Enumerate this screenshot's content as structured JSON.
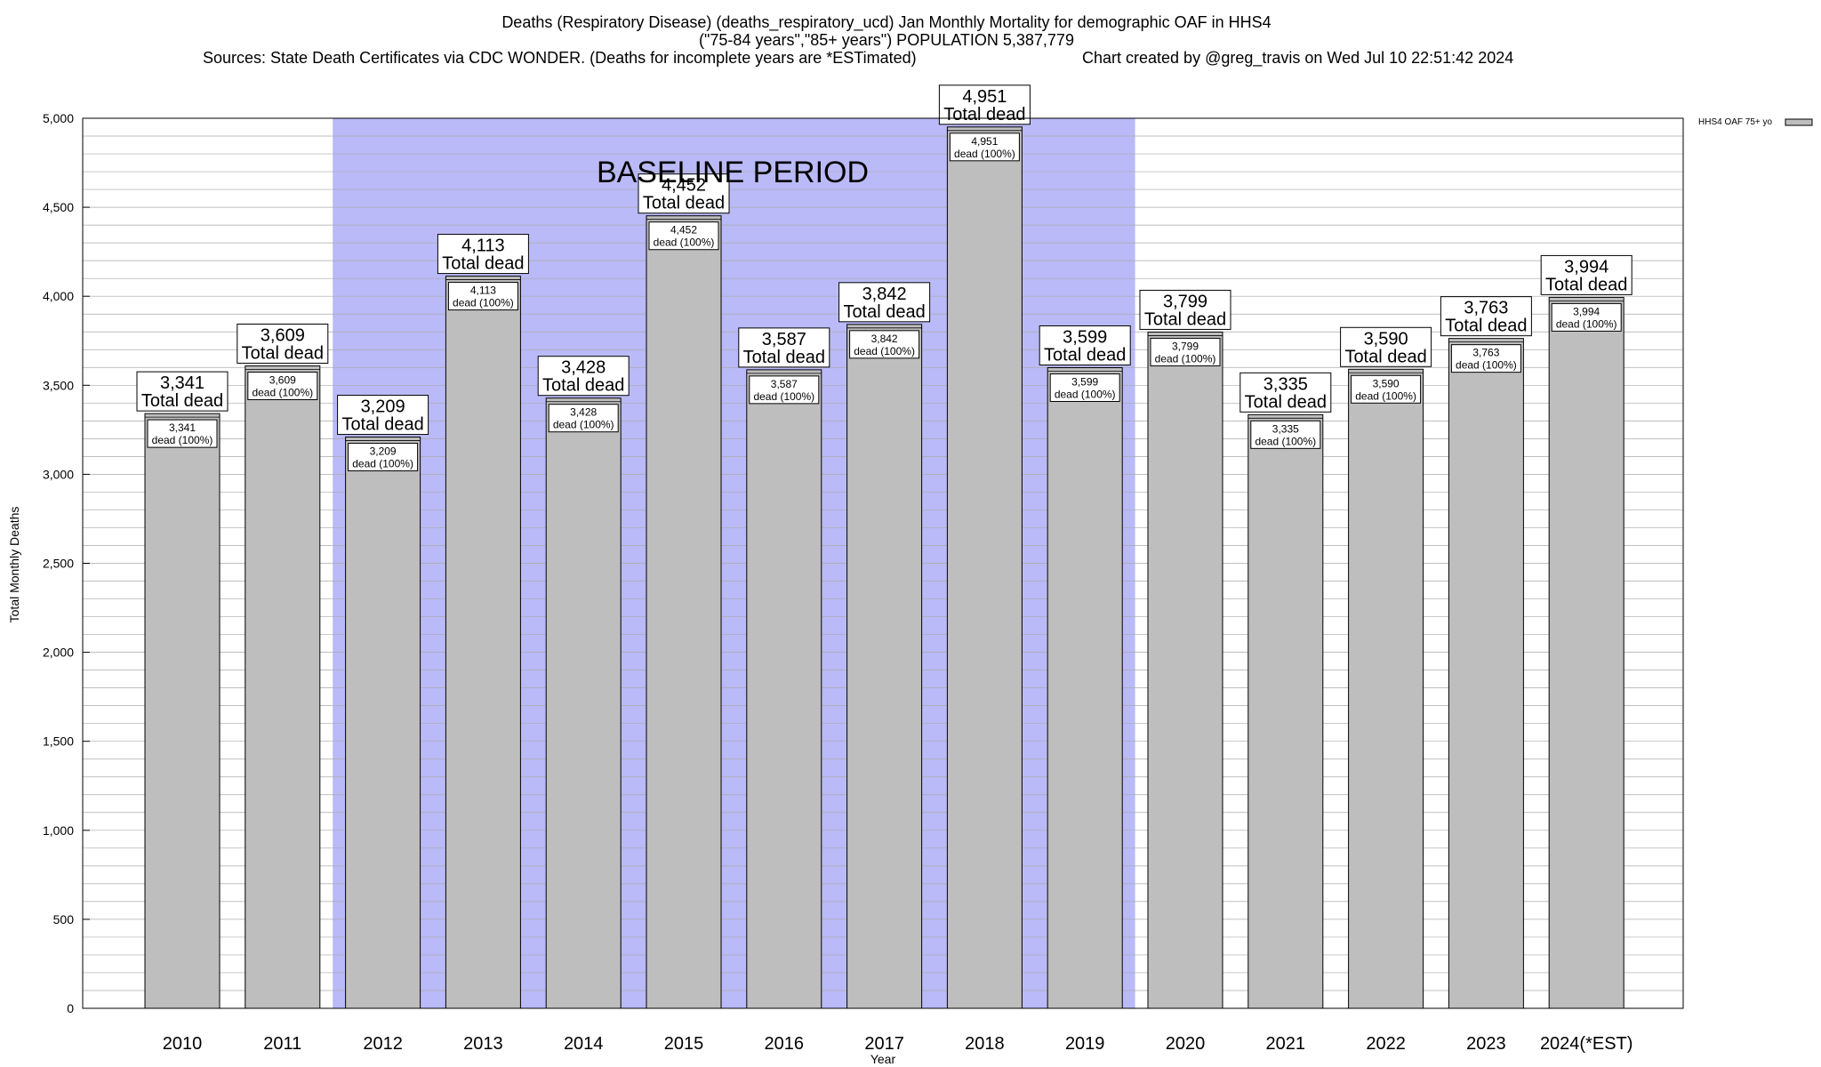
{
  "chart_data": {
    "type": "bar",
    "title_lines": [
      "Deaths (Respiratory Disease) (deaths_respiratory_ucd) Jan Monthly Mortality for demographic OAF in HHS4",
      "(\"75-84 years\",\"85+ years\") POPULATION 5,387,779"
    ],
    "sources": "Sources: State Death Certificates via CDC WONDER. (Deaths for incomplete years are *ESTimated)",
    "credit": "Chart created by @greg_travis on Wed Jul 10 22:51:42 2024",
    "xlabel": "Year",
    "ylabel": "Total Monthly Deaths",
    "ylim": [
      0,
      5000
    ],
    "y_ticks": [
      0,
      500,
      1000,
      1500,
      2000,
      2500,
      3000,
      3500,
      4000,
      4500,
      5000
    ],
    "y_tick_labels": [
      "0",
      "500",
      "1,000",
      "1,500",
      "2,000",
      "2,500",
      "3,000",
      "3,500",
      "4,000",
      "4,500",
      "5,000"
    ],
    "categories": [
      "2010",
      "2011",
      "2012",
      "2013",
      "2014",
      "2015",
      "2016",
      "2017",
      "2018",
      "2019",
      "2020",
      "2021",
      "2022",
      "2023",
      "2024(*EST)"
    ],
    "values": [
      3341,
      3609,
      3209,
      4113,
      3428,
      4452,
      3587,
      3842,
      4951,
      3599,
      3799,
      3335,
      3590,
      3763,
      3994
    ],
    "value_labels": [
      "3,341",
      "3,609",
      "3,209",
      "4,113",
      "3,428",
      "4,452",
      "3,587",
      "3,842",
      "4,951",
      "3,599",
      "3,799",
      "3,335",
      "3,590",
      "3,763",
      "3,994"
    ],
    "total_label": "Total dead",
    "share_label": "dead (100%)",
    "baseline": {
      "label": "BASELINE PERIOD",
      "from": "2012",
      "to": "2019",
      "color": "#babaf8"
    },
    "legend": {
      "label": "HHS4 OAF 75+ yo",
      "position": "top-right"
    },
    "bar_color": "#bebebe",
    "grid": true
  }
}
